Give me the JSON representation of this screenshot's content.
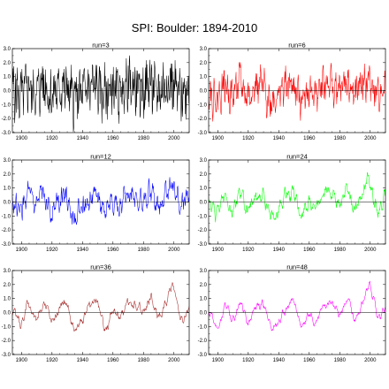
{
  "figure": {
    "title": "SPI:  Boulder: 1894-2010"
  },
  "chart_data": [
    {
      "type": "line",
      "title": "run=3",
      "color": "#000000",
      "x_range": [
        1894,
        2010
      ],
      "ylim": [
        -3,
        3
      ],
      "yticks": [
        "3.0",
        "2.0",
        "1.0",
        "0.0",
        "-1.0",
        "-2.0",
        "-3.0"
      ],
      "xticks": [
        "1900",
        "1920",
        "1940",
        "1960",
        "1980",
        "2000"
      ],
      "series": [
        {
          "x": [
            1894,
            1899,
            1904,
            1909,
            1914,
            1919,
            1924,
            1929,
            1934,
            1939,
            1944,
            1949,
            1954,
            1959,
            1964,
            1969,
            1974,
            1979,
            1984,
            1989,
            1994,
            1999,
            2004,
            2009
          ],
          "y": [
            0.2,
            -0.5,
            0.4,
            -0.3,
            0.6,
            -0.4,
            0.1,
            0.3,
            -0.6,
            -0.2,
            0.2,
            0.3,
            -0.4,
            0.1,
            -0.2,
            0.4,
            0.3,
            -0.1,
            0.6,
            -0.3,
            0.4,
            0.5,
            -0.4,
            0.3
          ]
        }
      ]
    },
    {
      "type": "line",
      "title": "run=6",
      "color": "#ff0000",
      "x_range": [
        1894,
        2010
      ],
      "ylim": [
        -3,
        3
      ],
      "yticks": [
        "3.0",
        "2.0",
        "1.0",
        "0.0",
        "-1.0",
        "-2.0",
        "-3.0"
      ],
      "xticks": [
        "1900",
        "1920",
        "1940",
        "1960",
        "1980",
        "2000"
      ],
      "series": [
        {
          "x": [
            1894,
            1899,
            1904,
            1909,
            1914,
            1919,
            1924,
            1929,
            1934,
            1939,
            1944,
            1949,
            1954,
            1959,
            1964,
            1969,
            1974,
            1979,
            1984,
            1989,
            1994,
            1999,
            2004,
            2009
          ],
          "y": [
            0.1,
            -0.7,
            0.5,
            -0.4,
            0.7,
            -0.5,
            0.2,
            0.4,
            -0.8,
            -0.3,
            0.3,
            0.4,
            -0.6,
            0.1,
            -0.3,
            0.5,
            0.4,
            -0.2,
            0.8,
            -0.4,
            0.5,
            0.7,
            -0.5,
            0.4
          ]
        }
      ]
    },
    {
      "type": "line",
      "title": "run=12",
      "color": "#0000ff",
      "x_range": [
        1894,
        2010
      ],
      "ylim": [
        -3,
        3
      ],
      "yticks": [
        "3.0",
        "2.0",
        "1.0",
        "0.0",
        "-1.0",
        "-2.0",
        "-3.0"
      ],
      "xticks": [
        "1900",
        "1920",
        "1940",
        "1960",
        "1980",
        "2000"
      ],
      "series": [
        {
          "x": [
            1894,
            1899,
            1904,
            1909,
            1914,
            1919,
            1924,
            1929,
            1934,
            1939,
            1944,
            1949,
            1954,
            1959,
            1964,
            1969,
            1974,
            1979,
            1984,
            1989,
            1994,
            1999,
            2004,
            2009
          ],
          "y": [
            0.1,
            -0.8,
            0.6,
            -0.5,
            0.8,
            -0.7,
            0.3,
            0.5,
            -1.1,
            -0.4,
            0.4,
            0.6,
            -0.9,
            0.2,
            -0.5,
            0.6,
            0.5,
            -0.3,
            1.0,
            -0.5,
            0.7,
            1.4,
            -0.6,
            0.5
          ]
        }
      ]
    },
    {
      "type": "line",
      "title": "run=24",
      "color": "#00ff00",
      "x_range": [
        1894,
        2010
      ],
      "ylim": [
        -3,
        3
      ],
      "yticks": [
        "3.0",
        "2.0",
        "1.0",
        "0.0",
        "-1.0",
        "-2.0",
        "-3.0"
      ],
      "xticks": [
        "1900",
        "1920",
        "1940",
        "1960",
        "1980",
        "2000"
      ],
      "series": [
        {
          "x": [
            1894,
            1899,
            1904,
            1909,
            1914,
            1919,
            1924,
            1929,
            1934,
            1939,
            1944,
            1949,
            1954,
            1959,
            1964,
            1969,
            1974,
            1979,
            1984,
            1989,
            1994,
            1999,
            2004,
            2009
          ],
          "y": [
            0.0,
            -1.0,
            0.7,
            -0.6,
            0.9,
            -0.9,
            0.3,
            0.6,
            -1.3,
            -0.5,
            0.5,
            0.7,
            -1.1,
            0.2,
            -0.6,
            0.8,
            0.6,
            -0.4,
            1.1,
            -0.7,
            0.8,
            1.8,
            -0.8,
            0.6
          ]
        }
      ]
    },
    {
      "type": "line",
      "title": "run=36",
      "color": "#a52a2a",
      "x_range": [
        1894,
        2010
      ],
      "ylim": [
        -3,
        3
      ],
      "yticks": [
        "3.0",
        "2.0",
        "1.0",
        "0.0",
        "-1.0",
        "-2.0",
        "-3.0"
      ],
      "xticks": [
        "1900",
        "1920",
        "1940",
        "1960",
        "1980",
        "2000"
      ],
      "series": [
        {
          "x": [
            1894,
            1899,
            1904,
            1909,
            1914,
            1919,
            1924,
            1929,
            1934,
            1939,
            1944,
            1949,
            1954,
            1959,
            1964,
            1969,
            1974,
            1979,
            1984,
            1989,
            1994,
            1999,
            2004,
            2009
          ],
          "y": [
            0.0,
            -1.1,
            0.8,
            -0.7,
            1.0,
            -1.0,
            0.3,
            0.7,
            -1.5,
            -0.6,
            0.5,
            0.8,
            -1.3,
            0.2,
            -0.7,
            0.9,
            0.7,
            -0.5,
            1.2,
            -0.8,
            0.9,
            2.2,
            -0.9,
            0.6
          ]
        }
      ]
    },
    {
      "type": "line",
      "title": "run=48",
      "color": "#ff00ff",
      "x_range": [
        1894,
        2010
      ],
      "ylim": [
        -3,
        3
      ],
      "yticks": [
        "3.0",
        "2.0",
        "1.0",
        "0.0",
        "-1.0",
        "-2.0",
        "-3.0"
      ],
      "xticks": [
        "1900",
        "1920",
        "1940",
        "1960",
        "1980",
        "2000"
      ],
      "series": [
        {
          "x": [
            1894,
            1899,
            1904,
            1909,
            1914,
            1919,
            1924,
            1929,
            1934,
            1939,
            1944,
            1949,
            1954,
            1959,
            1964,
            1969,
            1974,
            1979,
            1984,
            1989,
            1994,
            1999,
            2004,
            2009
          ],
          "y": [
            -0.1,
            -1.2,
            0.8,
            -0.8,
            1.0,
            -1.1,
            0.3,
            0.7,
            -1.7,
            -0.7,
            0.5,
            0.8,
            -1.4,
            0.2,
            -0.8,
            0.9,
            0.7,
            -0.6,
            1.3,
            -0.9,
            1.0,
            2.6,
            -1.0,
            0.6
          ]
        }
      ]
    }
  ]
}
